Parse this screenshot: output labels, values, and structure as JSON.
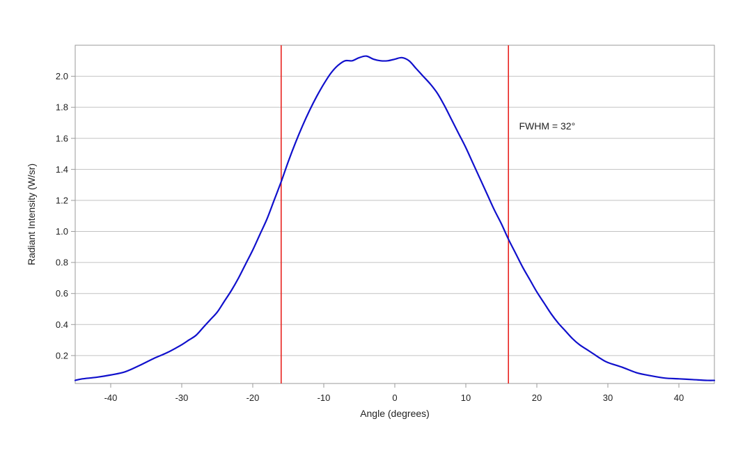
{
  "chart_data": {
    "type": "line",
    "title": "",
    "xlabel": "Angle (degrees)",
    "ylabel": "Radiant Intensity (W/sr)",
    "xlim": [
      -45,
      45
    ],
    "ylim": [
      0.02,
      2.2
    ],
    "xticks": [
      -40,
      -30,
      -20,
      -10,
      0,
      10,
      20,
      30,
      40
    ],
    "yticks": [
      0.2,
      0.4,
      0.6,
      0.8,
      1.0,
      1.2,
      1.4,
      1.6,
      1.8,
      2.0
    ],
    "ytick_labels": [
      "0.2",
      "0.4",
      "0.6",
      "0.8",
      "1.0",
      "1.2",
      "1.4",
      "1.6",
      "1.8",
      "2.0"
    ],
    "grid": "horizontal",
    "series": [
      {
        "color": "#1010cc",
        "x": [
          -45,
          -44,
          -42,
          -40,
          -38,
          -36,
          -34,
          -32,
          -30,
          -29,
          -28,
          -27,
          -26,
          -25,
          -24,
          -23,
          -22,
          -21,
          -20,
          -19,
          -18,
          -17,
          -16,
          -15,
          -14,
          -13,
          -12,
          -11,
          -10,
          -9,
          -8,
          -7,
          -6,
          -5,
          -4,
          -3,
          -2,
          -1,
          0,
          1,
          2,
          3,
          4,
          5,
          6,
          7,
          8,
          9,
          10,
          11,
          12,
          13,
          14,
          15,
          16,
          17,
          18,
          19,
          20,
          21,
          22,
          23,
          24,
          25,
          26,
          27,
          28,
          29,
          30,
          32,
          34,
          36,
          38,
          40,
          42,
          44,
          45
        ],
        "y": [
          0.04,
          0.05,
          0.06,
          0.075,
          0.095,
          0.135,
          0.18,
          0.22,
          0.27,
          0.3,
          0.33,
          0.38,
          0.43,
          0.48,
          0.55,
          0.62,
          0.7,
          0.79,
          0.88,
          0.98,
          1.08,
          1.2,
          1.32,
          1.45,
          1.57,
          1.68,
          1.78,
          1.87,
          1.95,
          2.02,
          2.07,
          2.1,
          2.1,
          2.12,
          2.13,
          2.11,
          2.1,
          2.1,
          2.11,
          2.12,
          2.1,
          2.05,
          2.0,
          1.95,
          1.89,
          1.81,
          1.72,
          1.63,
          1.54,
          1.44,
          1.34,
          1.24,
          1.14,
          1.05,
          0.95,
          0.86,
          0.77,
          0.69,
          0.61,
          0.54,
          0.47,
          0.41,
          0.36,
          0.31,
          0.27,
          0.24,
          0.21,
          0.18,
          0.155,
          0.125,
          0.09,
          0.07,
          0.055,
          0.05,
          0.045,
          0.04,
          0.04
        ]
      }
    ],
    "vlines": [
      {
        "x": -16,
        "color": "#e8231f"
      },
      {
        "x": 16,
        "color": "#e8231f"
      }
    ],
    "annotation": {
      "text": "FWHM = 32°",
      "x": 17.5,
      "y": 1.68
    }
  }
}
